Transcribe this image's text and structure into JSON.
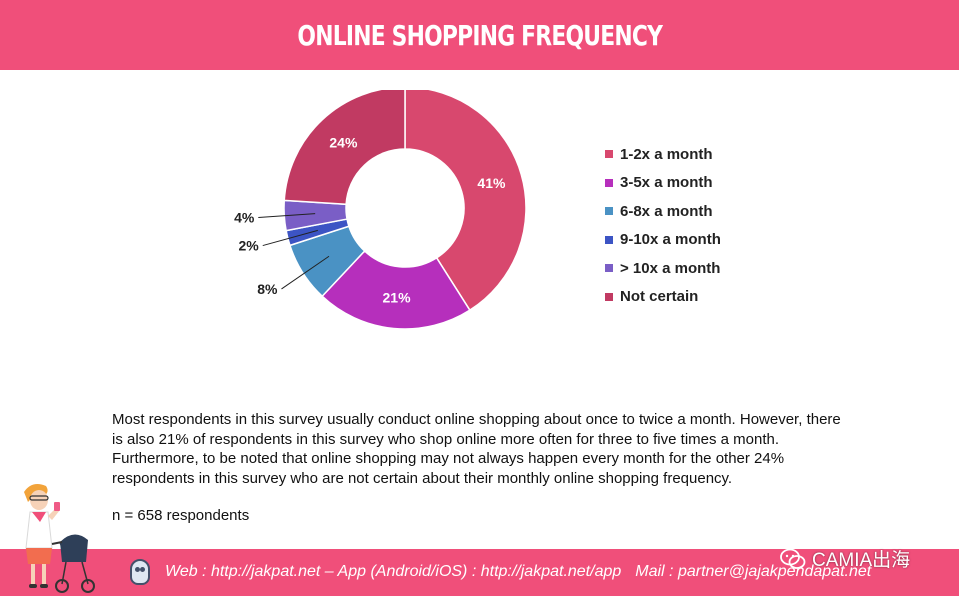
{
  "header": {
    "title": "ONLINE SHOPPING FREQUENCY"
  },
  "chart_data": {
    "type": "pie",
    "title": "ONLINE SHOPPING FREQUENCY",
    "categories": [
      "1-2x a month",
      "3-5x a month",
      "6-8x a month",
      "9-10x a month",
      "> 10x a month",
      "Not certain"
    ],
    "values": [
      41,
      21,
      8,
      2,
      4,
      24
    ],
    "value_labels": [
      "41%",
      "21%",
      "8%",
      "2%",
      "4%",
      "24%"
    ],
    "colors": [
      "#d8486e",
      "#b62fbc",
      "#4a92c4",
      "#3c54c4",
      "#7a5ec6",
      "#c13a62"
    ],
    "legend_placement": "right"
  },
  "description": "Most respondents in this survey usually conduct online shopping about once to twice a month. However, there is also 21% of respondents in this survey who shop online more often for three to five times a month. Furthermore, to be noted that online shopping may not always happen every month for the other 24% respondents in this survey who are not certain about their monthly online shopping frequency.",
  "sample_size": "n = 658 respondents",
  "footer": {
    "web": "Web : http://jakpat.net – App (Android/iOS) : http://jakpat.net/app",
    "mail": "Mail : partner@jajakpendapat.net",
    "owl_icon": "owl-logo-icon"
  },
  "watermark": {
    "text": "CAMIA出海",
    "icon": "wechat-icon"
  }
}
